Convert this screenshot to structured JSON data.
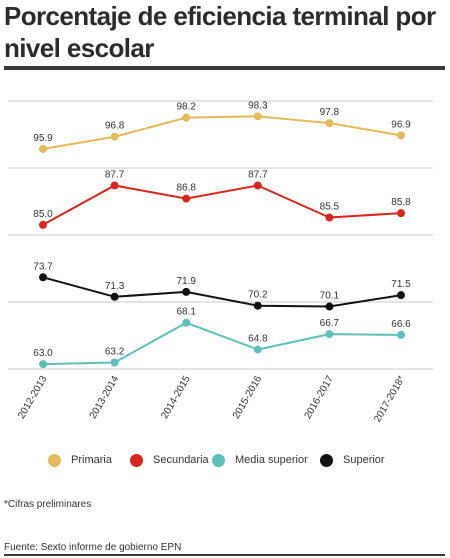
{
  "title": "Porcentaje de eficiencia terminal por nivel escolar",
  "note": "*Cifras preliminares",
  "source": "Fuente: Sexto informe de gobierno EPN",
  "chart_data": {
    "type": "line",
    "categories": [
      "2012-2013",
      "2013-2014",
      "2014-2015",
      "2015-2016",
      "2016-2017",
      "2017-2018*"
    ],
    "series": [
      {
        "name": "Primaria",
        "color": "#e3b95a",
        "values": [
          95.9,
          96.8,
          98.2,
          98.3,
          97.8,
          96.9
        ],
        "labels": [
          "95.9",
          "96.8",
          "98.2",
          "98.3",
          "97.8",
          "96.9"
        ],
        "band": [
          94.5,
          99.5
        ]
      },
      {
        "name": "Secundaria",
        "color": "#d9261c",
        "values": [
          85.0,
          87.7,
          86.8,
          87.7,
          85.5,
          85.8
        ],
        "labels": [
          "85.0",
          "87.7",
          "86.8",
          "87.7",
          "85.5",
          "85.8"
        ],
        "band": [
          84.3,
          88.9
        ]
      },
      {
        "name": "Media superior",
        "color": "#5dbfb8",
        "values": [
          63.0,
          63.2,
          68.1,
          64.8,
          66.7,
          66.6
        ],
        "labels": [
          "63.0",
          "63.2",
          "68.1",
          "64.8",
          "66.7",
          "66.6"
        ],
        "band": [
          62.4,
          74.6
        ]
      },
      {
        "name": "Superior",
        "color": "#111111",
        "values": [
          73.7,
          71.3,
          71.9,
          70.2,
          70.1,
          71.5
        ],
        "labels": [
          "73.7",
          "71.3",
          "71.9",
          "70.2",
          "70.1",
          "71.5"
        ],
        "band": [
          62.4,
          74.6
        ]
      }
    ],
    "grid": true,
    "legend": "bottom"
  }
}
